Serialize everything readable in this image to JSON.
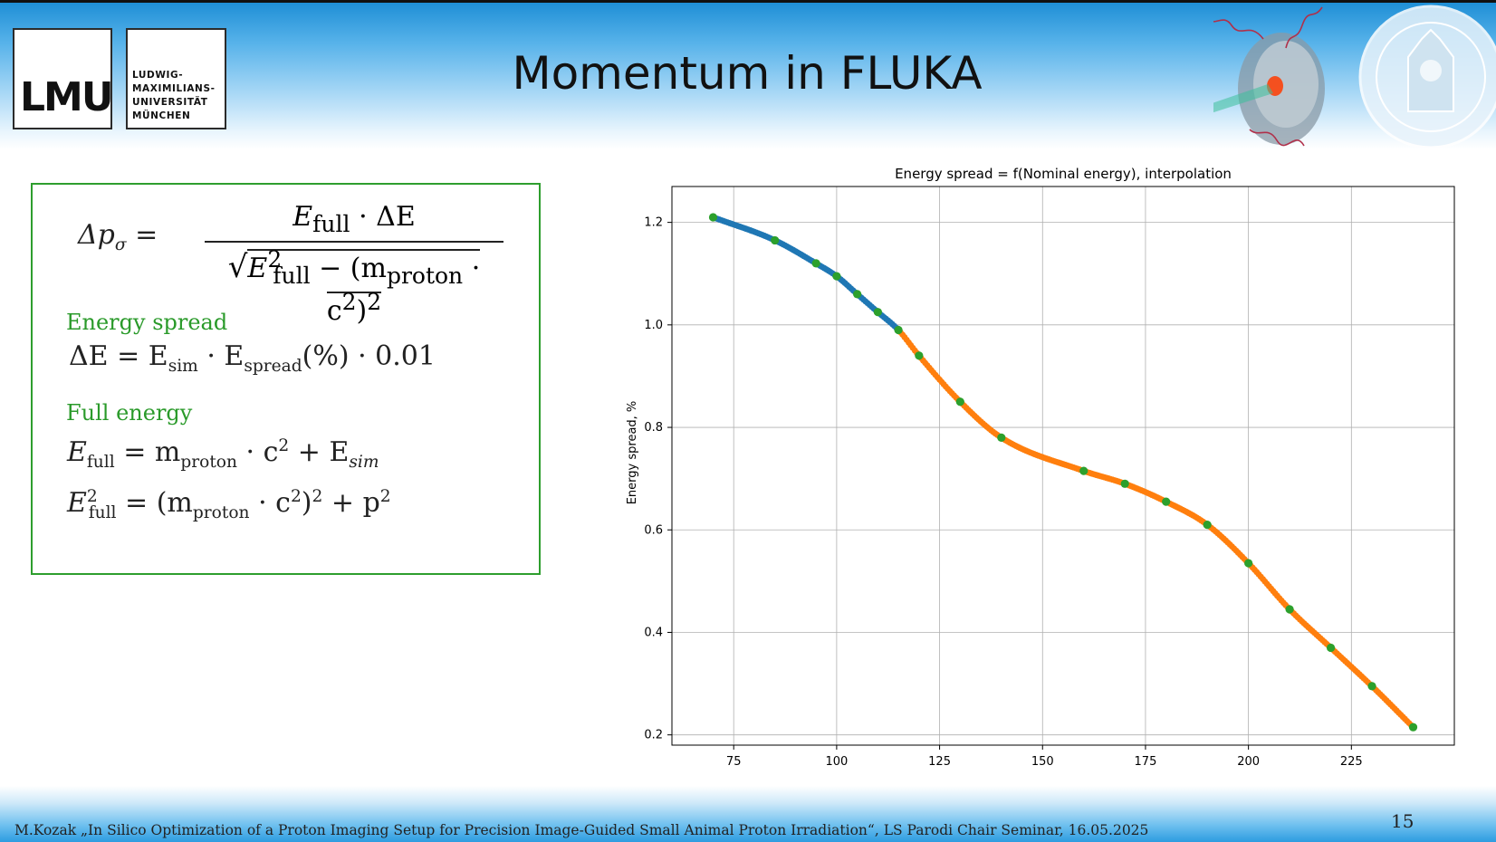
{
  "slide": {
    "title": "Momentum in FLUKA",
    "page_number": "15",
    "footer": "M.Kozak „In Silico Optimization of a Proton Imaging Setup for Precision Image-Guided Small Animal Proton Irradiation“,  LS Parodi Chair Seminar, 16.05.2025"
  },
  "logo": {
    "mark": "LMU",
    "name_lines": [
      "LUDWIG-",
      "MAXIMILIANS-",
      "UNIVERSITÄT",
      "MÜNCHEN"
    ]
  },
  "formulas": {
    "momentum_lhs": "Δp",
    "momentum_lhs_sub": "σ",
    "momentum_num": "E",
    "momentum_num_sub": "full",
    "momentum_num_rest": "· ΔE",
    "momentum_den_e": "E",
    "momentum_den_sup": "2",
    "momentum_den_sub": "full",
    "momentum_den_rest1": " − (m",
    "momentum_den_proton": "proton",
    "momentum_den_rest2": " · c",
    "momentum_den_rest3": ")",
    "energy_spread_label": "Energy spread",
    "energy_spread_lhs": "ΔE = E",
    "energy_spread_sub1": "sim",
    "energy_spread_mid": " · E",
    "energy_spread_sub2": "spread",
    "energy_spread_rest": "(%) · 0.01",
    "full_energy_label": "Full energy",
    "full_e1_a": "E",
    "full_e1_sub": "full",
    "full_e1_b": " = m",
    "full_e1_proton": "proton",
    "full_e1_c": " · c",
    "full_e1_d": " + E",
    "full_e1_sim": "sim",
    "full_e2_a": "E",
    "full_e2_sub": "full",
    "full_e2_b": " = (m",
    "full_e2_proton": "proton",
    "full_e2_c": " · c",
    "full_e2_d": ")",
    "full_e2_e": " + p",
    "sup2": "2"
  },
  "chart_data": {
    "type": "scatter",
    "title": "Energy spread = f(Nominal energy), interpolation",
    "xlabel": "",
    "ylabel": "Energy spread, %",
    "xlim": [
      60,
      250
    ],
    "ylim": [
      0.18,
      1.27
    ],
    "xticks": [
      75,
      100,
      125,
      150,
      175,
      200,
      225
    ],
    "yticks": [
      0.2,
      0.4,
      0.6,
      0.8,
      1.0,
      1.2
    ],
    "grid": true,
    "colors": {
      "blue": "#1f77b4",
      "orange": "#ff7f0e",
      "green": "#2ca02c"
    },
    "curve_points": {
      "x": [
        70,
        85,
        95,
        100,
        105,
        110,
        115,
        120,
        130,
        140,
        160,
        170,
        180,
        190,
        200,
        210,
        220,
        230,
        240
      ],
      "y": [
        1.21,
        1.165,
        1.12,
        1.095,
        1.06,
        1.025,
        0.99,
        0.94,
        0.85,
        0.78,
        0.715,
        0.69,
        0.655,
        0.61,
        0.535,
        0.445,
        0.37,
        0.295,
        0.215
      ]
    },
    "series": [
      {
        "color": "blue",
        "x_from": 70,
        "x_to": 115
      },
      {
        "color": "orange",
        "x_from": 115,
        "x_to": 240
      },
      {
        "color": "green",
        "x": [
          70,
          85,
          95,
          100,
          105,
          110,
          115,
          120,
          130,
          140,
          160,
          170,
          180,
          190,
          200,
          210,
          220,
          230,
          240
        ],
        "y": [
          1.21,
          1.165,
          1.12,
          1.095,
          1.06,
          1.025,
          0.99,
          0.94,
          0.85,
          0.78,
          0.715,
          0.69,
          0.655,
          0.61,
          0.535,
          0.445,
          0.37,
          0.295,
          0.215
        ]
      }
    ]
  }
}
